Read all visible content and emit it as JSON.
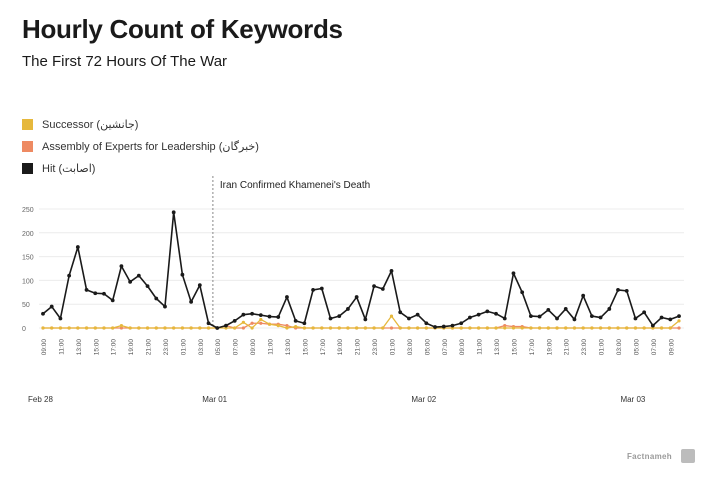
{
  "header": {
    "title": "Hourly Count of Keywords",
    "subtitle": "The First 72 Hours Of The War"
  },
  "legend": [
    {
      "label": "Successor (جانشین)",
      "color": "#e6b83c"
    },
    {
      "label": "Assembly of Experts for Leadership (خبرگان)",
      "color": "#ee8a62"
    },
    {
      "label": "Hit (اصابت)",
      "color": "#1a1a1a"
    }
  ],
  "branding": {
    "watermark": "Factnameh"
  },
  "chart_data": {
    "type": "line",
    "title": "Hourly Count of Keywords",
    "subtitle": "The First 72 Hours Of The War",
    "xlabel": "",
    "ylabel": "",
    "ylim": [
      0,
      250
    ],
    "yticks": [
      0,
      50,
      100,
      150,
      200,
      250
    ],
    "grid": true,
    "legend_position": "top-left",
    "x_tick_labels": [
      "09:00",
      "11:00",
      "13:00",
      "15:00",
      "17:00",
      "19:00",
      "21:00",
      "23:00",
      "01:00",
      "03:00",
      "05:00",
      "07:00",
      "09:00",
      "11:00",
      "13:00",
      "15:00",
      "17:00",
      "19:00",
      "21:00",
      "23:00",
      "01:00",
      "03:00",
      "05:00",
      "07:00",
      "09:00",
      "11:00",
      "13:00",
      "15:00",
      "17:00",
      "19:00",
      "21:00",
      "23:00",
      "01:00",
      "03:00",
      "05:00",
      "07:00",
      "09:00"
    ],
    "date_labels": [
      {
        "label": "Feb 28",
        "index": 0
      },
      {
        "label": "Mar 01",
        "index": 20
      },
      {
        "label": "Mar 02",
        "index": 44
      },
      {
        "label": "Mar 03",
        "index": 68
      }
    ],
    "annotation": {
      "label": "Iran Confirmed  Khamenei's Death",
      "index": 19.5
    },
    "series": [
      {
        "name": "Hit (اصابت)",
        "color": "#1a1a1a",
        "values": [
          30,
          45,
          20,
          110,
          170,
          80,
          73,
          72,
          58,
          130,
          97,
          110,
          88,
          62,
          45,
          243,
          112,
          55,
          90,
          10,
          0,
          5,
          15,
          28,
          30,
          27,
          24,
          23,
          65,
          15,
          10,
          80,
          83,
          20,
          25,
          40,
          65,
          18,
          88,
          82,
          120,
          33,
          20,
          28,
          10,
          2,
          3,
          5,
          10,
          22,
          28,
          35,
          30,
          20,
          115,
          75,
          25,
          24,
          38,
          20,
          40,
          18,
          68,
          25,
          22,
          40,
          80,
          78,
          20,
          33,
          5,
          22,
          18,
          25
        ]
      },
      {
        "name": "Successor (جانشین)",
        "color": "#e6b83c",
        "values": [
          0,
          0,
          0,
          0,
          0,
          0,
          0,
          0,
          0,
          5,
          0,
          0,
          0,
          0,
          0,
          0,
          0,
          0,
          0,
          0,
          0,
          0,
          0,
          12,
          0,
          18,
          8,
          5,
          0,
          3,
          0,
          0,
          0,
          0,
          0,
          0,
          0,
          0,
          0,
          0,
          25,
          0,
          0,
          0,
          0,
          0,
          0,
          0,
          0,
          0,
          0,
          0,
          0,
          0,
          0,
          0,
          0,
          0,
          0,
          0,
          0,
          0,
          0,
          0,
          0,
          0,
          0,
          0,
          0,
          0,
          0,
          0,
          0,
          15
        ]
      },
      {
        "name": "Assembly of Experts for Leadership (خبرگان)",
        "color": "#ee8a62",
        "values": [
          0,
          0,
          0,
          0,
          0,
          0,
          0,
          0,
          0,
          0,
          0,
          0,
          0,
          0,
          0,
          0,
          0,
          0,
          0,
          0,
          0,
          5,
          0,
          0,
          10,
          10,
          8,
          8,
          5,
          0,
          0,
          0,
          0,
          0,
          0,
          0,
          0,
          0,
          0,
          0,
          0,
          0,
          0,
          0,
          0,
          0,
          0,
          0,
          0,
          0,
          0,
          0,
          0,
          5,
          3,
          3,
          0,
          0,
          0,
          0,
          0,
          0,
          0,
          0,
          0,
          0,
          0,
          0,
          0,
          0,
          0,
          0,
          0,
          0
        ]
      }
    ]
  }
}
